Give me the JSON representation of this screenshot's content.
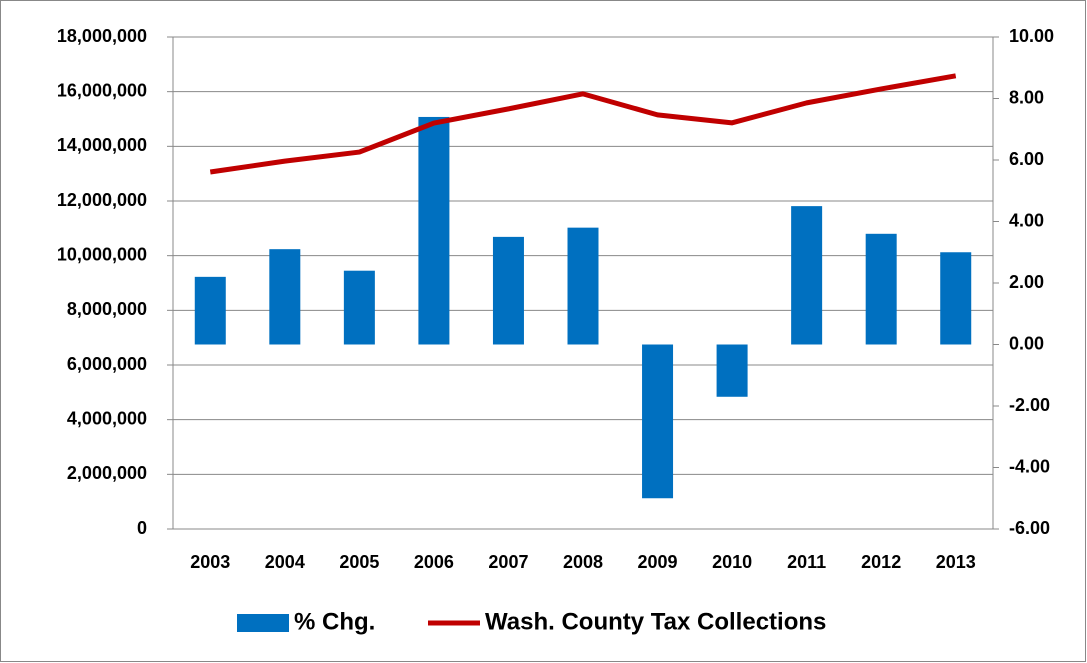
{
  "chart_data": {
    "type": "bar-line",
    "categories": [
      "2003",
      "2004",
      "2005",
      "2006",
      "2007",
      "2008",
      "2009",
      "2010",
      "2011",
      "2012",
      "2013"
    ],
    "series": [
      {
        "name": "% Chg.",
        "type": "bar",
        "axis": "y2",
        "color": "#0070c0",
        "values": [
          2.2,
          3.1,
          2.4,
          7.4,
          3.5,
          3.8,
          -5.0,
          -1.7,
          4.5,
          3.6,
          3.0
        ]
      },
      {
        "name": "Wash. County Tax Collections",
        "type": "line",
        "axis": "y",
        "color": "#c00000",
        "values": [
          13060000,
          13460000,
          13790000,
          14850000,
          15370000,
          15920000,
          15150000,
          14860000,
          15590000,
          16100000,
          16580000
        ]
      }
    ],
    "ylim": [
      0,
      18000000
    ],
    "yticks": [
      0,
      {
        "value": 2000000,
        "label": "2,000,000"
      },
      {
        "value": 4000000,
        "label": "4,000,000"
      },
      {
        "value": 6000000,
        "label": "6,000,000"
      },
      {
        "value": 8000000,
        "label": "8,000,000"
      },
      {
        "value": 10000000,
        "label": "10,000,000"
      },
      {
        "value": 12000000,
        "label": "12,000,000"
      },
      {
        "value": 14000000,
        "label": "14,000,000"
      },
      {
        "value": 16000000,
        "label": "16,000,000"
      },
      {
        "value": 18000000,
        "label": "18,000,000"
      }
    ],
    "y2lim": [
      -6,
      10
    ],
    "y2ticks": [
      {
        "value": -6,
        "label": "-6.00"
      },
      {
        "value": -4,
        "label": "-4.00"
      },
      {
        "value": -2,
        "label": "-2.00"
      },
      {
        "value": 0,
        "label": "0.00"
      },
      {
        "value": 2,
        "label": "2.00"
      },
      {
        "value": 4,
        "label": "4.00"
      },
      {
        "value": 6,
        "label": "6.00"
      },
      {
        "value": 8,
        "label": "8.00"
      },
      {
        "value": 10,
        "label": "10.00"
      }
    ],
    "grid": true,
    "legend": "bottom"
  }
}
